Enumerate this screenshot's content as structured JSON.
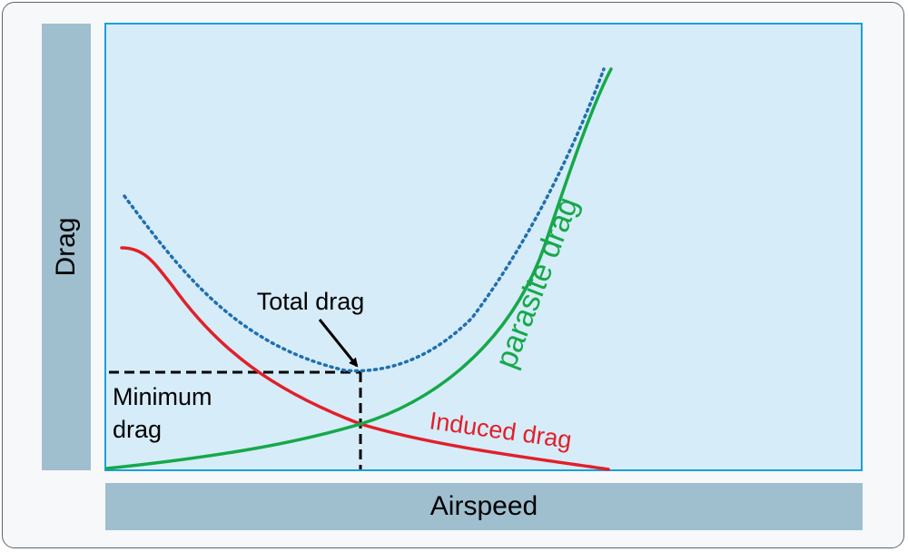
{
  "axes": {
    "y_label": "Drag",
    "x_label": "Airspeed"
  },
  "curves": {
    "total_label": "Total drag",
    "parasite_label": "parasite drag",
    "induced_label": "Induced drag",
    "minimum_label_line1": "Minimum",
    "minimum_label_line2": "drag"
  },
  "colors": {
    "plot_background": "#d6ecf8",
    "plot_border": "#1aa0d8",
    "axis_bars": "#9fbfcf",
    "total_drag": "#1f6fb0",
    "parasite_drag": "#16a84a",
    "induced_drag": "#e0202a",
    "minimum_guide": "#000000"
  }
}
